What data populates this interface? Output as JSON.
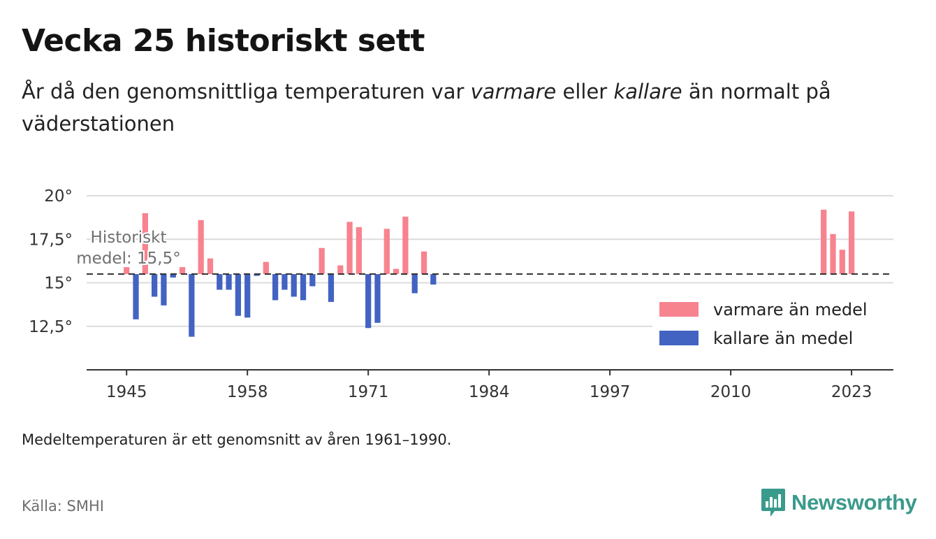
{
  "title": "Vecka 25 historiskt sett",
  "subtitle": {
    "part1": "År då den genomsnittliga temperaturen var ",
    "warm_word": "varmare",
    "part2": " eller ",
    "cold_word": "kallare",
    "part3": " än normalt på väderstationen"
  },
  "footnote": "Medeltemperaturen är ett genomsnitt av åren 1961–1990.",
  "source": "Källa: SMHI",
  "brand": {
    "name": "Newsworthy",
    "icon": "newsworthy-logo-icon",
    "color": "#3a9a8c"
  },
  "colors": {
    "warm": "#f7838f",
    "cold": "#4263c2",
    "grid": "#dcdcdc",
    "axis": "#333333",
    "reference": "#333333"
  },
  "chart_data": {
    "type": "bar",
    "x_ticks": [
      1945,
      1958,
      1971,
      1984,
      1997,
      2010,
      2023
    ],
    "xlim": [
      1940.7,
      2027.5
    ],
    "y_ticks": [
      {
        "value": 20,
        "label": "20°"
      },
      {
        "value": 17.5,
        "label": "17,5°"
      },
      {
        "value": 15,
        "label": "15°"
      },
      {
        "value": 12.5,
        "label": "12,5°"
      }
    ],
    "ylim": [
      10.0,
      20.0
    ],
    "baseline": 15.5,
    "reference_label": [
      "Historiskt",
      "medel: 15,5°"
    ],
    "legend": {
      "position": "right",
      "warm": "varmare än medel",
      "cold": "kallare än medel"
    },
    "x": [
      1945,
      1946,
      1947,
      1948,
      1949,
      1950,
      1951,
      1952,
      1953,
      1954,
      1955,
      1956,
      1957,
      1958,
      1959,
      1960,
      1961,
      1962,
      1963,
      1964,
      1965,
      1966,
      1967,
      1968,
      1969,
      1970,
      1971,
      1972,
      1973,
      1974,
      1975,
      1976,
      1977,
      1978,
      2020,
      2021,
      2022,
      2023
    ],
    "values": [
      15.9,
      12.9,
      19.0,
      14.2,
      13.7,
      15.3,
      15.9,
      11.9,
      18.6,
      16.4,
      14.6,
      14.6,
      13.1,
      13.0,
      15.4,
      16.2,
      14.0,
      14.6,
      14.2,
      14.0,
      14.8,
      17.0,
      13.9,
      16.0,
      18.5,
      18.2,
      12.4,
      12.7,
      18.1,
      15.8,
      18.8,
      14.4,
      16.8,
      14.9,
      19.2,
      17.8,
      16.9,
      19.1
    ]
  }
}
